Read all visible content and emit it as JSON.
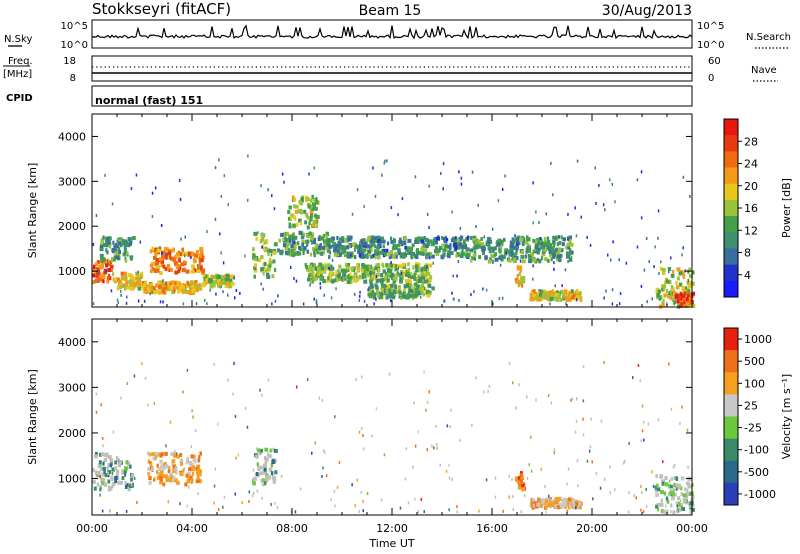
{
  "header": {
    "station": "Stokkseyri (fitACF)",
    "beam": "Beam 15",
    "date": "30/Aug/2013"
  },
  "strips": {
    "nsky_label": "N.Sky",
    "nsky_ticks": [
      "10^5",
      "10^0"
    ],
    "nsearch_ticks": [
      "10^5",
      "10^0"
    ],
    "nsearch_label": "N.Search",
    "freq_label": "Freq.",
    "freq_unit": "[MHz]",
    "freq_ticks": [
      "18",
      "8"
    ],
    "nave_ticks": [
      "60",
      "0"
    ],
    "nave_label": "Nave",
    "cpid_label": "CPID",
    "cpid_value": "normal (fast) 151"
  },
  "chart_data": [
    {
      "type": "heatmap",
      "title": "",
      "xlabel": "Time UT",
      "ylabel": "Slant Range [km]",
      "x_ticks": [
        "00:00",
        "04:00",
        "08:00",
        "12:00",
        "16:00",
        "20:00",
        "00:00"
      ],
      "y_ticks": [
        "1000",
        "2000",
        "3000",
        "4000"
      ],
      "x_range_hours": [
        0,
        24
      ],
      "y_range_km": [
        200,
        4500
      ],
      "colorbar": {
        "label": "Power [dB]",
        "range": [
          0,
          32
        ],
        "ticks": [
          "4",
          "8",
          "12",
          "16",
          "20",
          "24",
          "28"
        ],
        "colors": [
          "#1a1aff",
          "#2233cc",
          "#3a6ea0",
          "#3d8f6e",
          "#44a048",
          "#9ac23a",
          "#e8c81c",
          "#f59a18",
          "#f06a14",
          "#e83a10",
          "#e81810"
        ]
      },
      "regions": [
        {
          "t0": 0.0,
          "t1": 0.8,
          "r0": 800,
          "r1": 1300,
          "level": 0.82
        },
        {
          "t0": 0.8,
          "t1": 2.0,
          "r0": 650,
          "r1": 1000,
          "level": 0.6
        },
        {
          "t0": 0.3,
          "t1": 1.6,
          "r0": 1250,
          "r1": 1800,
          "level": 0.35
        },
        {
          "t0": 2.0,
          "t1": 4.3,
          "r0": 550,
          "r1": 800,
          "level": 0.65
        },
        {
          "t0": 2.3,
          "t1": 4.4,
          "r0": 1000,
          "r1": 1550,
          "level": 0.75
        },
        {
          "t0": 4.4,
          "t1": 5.6,
          "r0": 700,
          "r1": 950,
          "level": 0.5
        },
        {
          "t0": 6.4,
          "t1": 7.3,
          "r0": 900,
          "r1": 1900,
          "level": 0.45
        },
        {
          "t0": 7.4,
          "t1": 9.4,
          "r0": 1400,
          "r1": 1900,
          "level": 0.35
        },
        {
          "t0": 7.8,
          "t1": 9.0,
          "r0": 2000,
          "r1": 2700,
          "level": 0.5
        },
        {
          "t0": 8.5,
          "t1": 13.5,
          "r0": 800,
          "r1": 1200,
          "level": 0.45
        },
        {
          "t0": 9.4,
          "t1": 15.0,
          "r0": 1350,
          "r1": 1800,
          "level": 0.3
        },
        {
          "t0": 11.0,
          "t1": 13.6,
          "r0": 450,
          "r1": 750,
          "level": 0.42
        },
        {
          "t0": 15.0,
          "t1": 19.2,
          "r0": 1250,
          "r1": 1800,
          "level": 0.35
        },
        {
          "t0": 17.5,
          "t1": 19.5,
          "r0": 400,
          "r1": 600,
          "level": 0.58
        },
        {
          "t0": 16.9,
          "t1": 17.2,
          "r0": 700,
          "r1": 1150,
          "level": 0.62
        },
        {
          "t0": 22.5,
          "t1": 24.0,
          "r0": 250,
          "r1": 1100,
          "level": 0.55
        },
        {
          "t0": 23.3,
          "t1": 24.0,
          "r0": 250,
          "r1": 550,
          "level": 0.9
        }
      ]
    },
    {
      "type": "heatmap",
      "title": "",
      "xlabel": "Time UT",
      "ylabel": "Slant Range [km]",
      "x_ticks": [
        "00:00",
        "04:00",
        "08:00",
        "12:00",
        "16:00",
        "20:00",
        "00:00"
      ],
      "y_ticks": [
        "1000",
        "2000",
        "3000",
        "4000"
      ],
      "x_range_hours": [
        0,
        24
      ],
      "y_range_km": [
        200,
        4500
      ],
      "colorbar": {
        "label": "Velocity [m s⁻¹]",
        "ticks": [
          "1000",
          "500",
          "100",
          "25",
          "-25",
          "-100",
          "-500",
          "-1000"
        ],
        "colors": [
          "#2a3fb8",
          "#2a6a8a",
          "#3a8a6a",
          "#6ac83a",
          "#c8c8c8",
          "#f5a020",
          "#f07018",
          "#e82010"
        ]
      },
      "ground_scatter_color": "#c0c0b8",
      "regions": [
        {
          "t0": 0.0,
          "t1": 1.6,
          "r0": 800,
          "r1": 1600,
          "level": 0.25
        },
        {
          "t0": 2.2,
          "t1": 4.3,
          "r0": 900,
          "r1": 1600,
          "level": 0.72
        },
        {
          "t0": 6.4,
          "t1": 7.3,
          "r0": 900,
          "r1": 1700,
          "level": 0.35
        },
        {
          "t0": 16.9,
          "t1": 17.3,
          "r0": 800,
          "r1": 1200,
          "level": 0.85
        },
        {
          "t0": 17.5,
          "t1": 19.5,
          "r0": 400,
          "r1": 600,
          "level": 0.7
        },
        {
          "t0": 22.5,
          "t1": 24.0,
          "r0": 300,
          "r1": 1100,
          "level": 0.4
        }
      ]
    }
  ]
}
